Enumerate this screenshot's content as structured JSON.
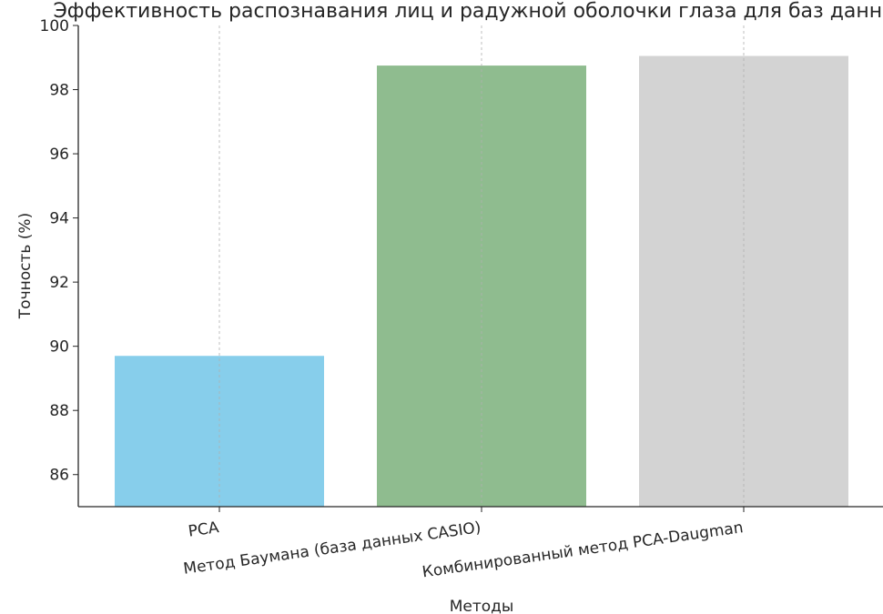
{
  "chart_data": {
    "type": "bar",
    "title": "Эффективность распознавания лиц и радужной оболочки глаза для баз данных",
    "xlabel": "Методы",
    "ylabel": "Точность (%)",
    "categories": [
      "PCA",
      "Метод Баумана (база данных CASIO)",
      "Комбинированный метод PCA-Daugman"
    ],
    "values": [
      89.7,
      98.75,
      99.05
    ],
    "colors": [
      "#87ceeb",
      "#8fbc8f",
      "#d3d3d3"
    ],
    "ylim": [
      85,
      100
    ],
    "yticks": [
      86,
      88,
      90,
      92,
      94,
      96,
      98,
      100
    ],
    "grid": "x-dashed",
    "legend": "none"
  }
}
